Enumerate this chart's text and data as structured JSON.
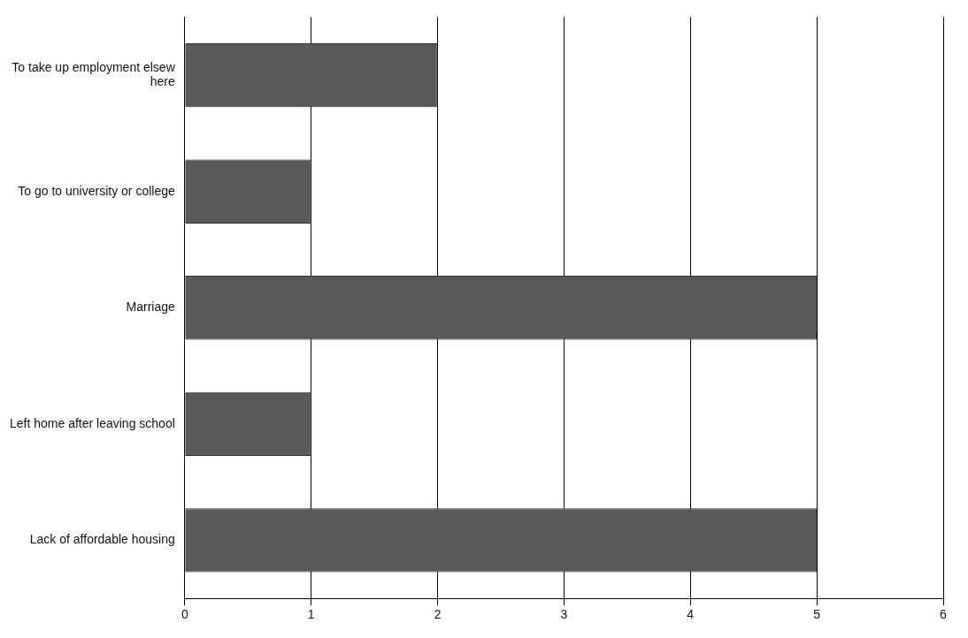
{
  "chart_data": {
    "type": "bar",
    "orientation": "horizontal",
    "categories": [
      "To take up employment elsew here",
      "To go to university or college",
      "Marriage",
      "Left home after leaving school",
      "Lack of affordable housing"
    ],
    "values": [
      2,
      1,
      5,
      1,
      5
    ],
    "color": "#5a5a5a",
    "xlim": [
      0,
      6
    ],
    "xticks": [
      0,
      1,
      2,
      3,
      4,
      5,
      6
    ],
    "grid": "x",
    "legend": false
  }
}
